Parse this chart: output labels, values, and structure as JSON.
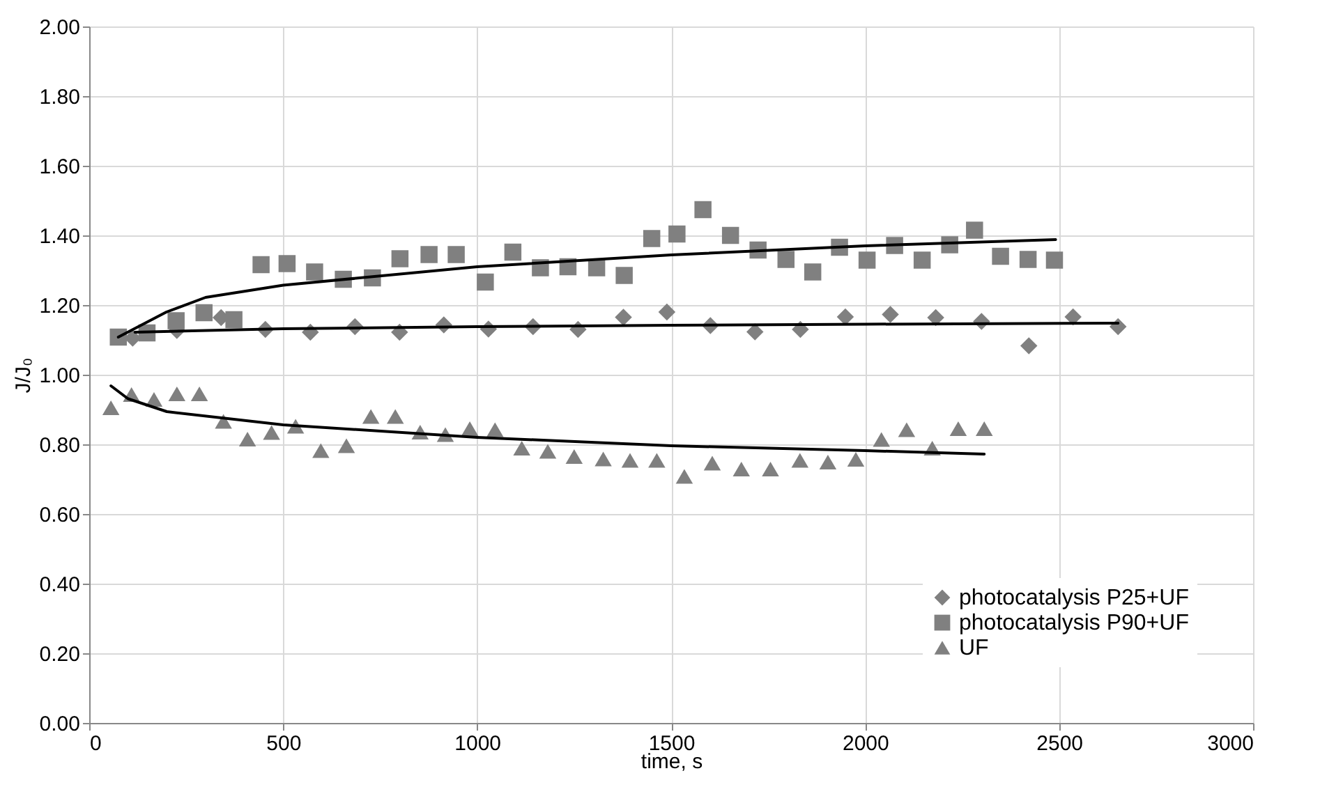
{
  "chart_data": {
    "type": "scatter",
    "xlabel": "time, s",
    "ylabel": "J/J₀",
    "xlim": [
      0,
      3000
    ],
    "xticks": [
      0,
      500,
      1000,
      1500,
      2000,
      2500,
      3000
    ],
    "ylim": [
      0,
      2
    ],
    "yticks": [
      {
        "value": 0,
        "label": "0.00"
      },
      {
        "value": 0.2,
        "label": "0.20"
      },
      {
        "value": 0.4,
        "label": "0.40"
      },
      {
        "value": 0.6,
        "label": "0.60"
      },
      {
        "value": 0.8,
        "label": "0.80"
      },
      {
        "value": 1,
        "label": "1.00"
      },
      {
        "value": 1.2,
        "label": "1.20"
      },
      {
        "value": 1.4,
        "label": "1.40"
      },
      {
        "value": 1.6,
        "label": "1.60"
      },
      {
        "value": 1.8,
        "label": "1.80"
      },
      {
        "value": 2,
        "label": "2.00"
      }
    ],
    "grid": true,
    "legend": "bottom right",
    "series": [
      {
        "name": "photocatalysis P25+UF",
        "color": "#808080",
        "marker": "diamond",
        "x": [
          112,
          226,
          340,
          454,
          570,
          685,
          800,
          914,
          1029,
          1144,
          1260,
          1377,
          1489,
          1601,
          1716,
          1833,
          1949,
          2065,
          2182,
          2300,
          2422,
          2536,
          2652
        ],
        "values": [
          1.105,
          1.127,
          1.164,
          1.13,
          1.122,
          1.138,
          1.122,
          1.143,
          1.131,
          1.138,
          1.13,
          1.165,
          1.18,
          1.141,
          1.123,
          1.13,
          1.166,
          1.173,
          1.164,
          1.153,
          1.083,
          1.166,
          1.138
        ]
      },
      {
        "name": "photocatalysis P90+UF",
        "color": "#808080",
        "marker": "square",
        "x": [
          75,
          149,
          224,
          296,
          373,
          443,
          510,
          581,
          655,
          730,
          801,
          876,
          946,
          1021,
          1092,
          1163,
          1234,
          1308,
          1379,
          1450,
          1515,
          1582,
          1653,
          1724,
          1796,
          1865,
          1934,
          2005,
          2076,
          2147,
          2218,
          2282,
          2349,
          2420,
          2488
        ],
        "values": [
          1.108,
          1.12,
          1.155,
          1.178,
          1.158,
          1.316,
          1.319,
          1.295,
          1.274,
          1.278,
          1.333,
          1.345,
          1.345,
          1.266,
          1.352,
          1.307,
          1.31,
          1.307,
          1.285,
          1.391,
          1.404,
          1.474,
          1.4,
          1.358,
          1.331,
          1.295,
          1.366,
          1.329,
          1.371,
          1.329,
          1.373,
          1.415,
          1.34,
          1.331,
          1.329
        ]
      },
      {
        "name": "UF",
        "color": "#808080",
        "marker": "triangle",
        "x": [
          56,
          109,
          167,
          226,
          284,
          346,
          408,
          470,
          532,
          597,
          663,
          726,
          789,
          853,
          918,
          981,
          1046,
          1115,
          1182,
          1250,
          1325,
          1394,
          1463,
          1534,
          1606,
          1681,
          1756,
          1832,
          1904,
          1976,
          2042,
          2107,
          2173,
          2240,
          2307
        ],
        "values": [
          0.905,
          0.943,
          0.929,
          0.945,
          0.945,
          0.866,
          0.815,
          0.834,
          0.852,
          0.782,
          0.796,
          0.88,
          0.88,
          0.835,
          0.828,
          0.845,
          0.842,
          0.789,
          0.78,
          0.765,
          0.758,
          0.754,
          0.754,
          0.708,
          0.746,
          0.729,
          0.729,
          0.754,
          0.749,
          0.757,
          0.814,
          0.842,
          0.789,
          0.845,
          0.845
        ]
      },
      {
        "type": "line",
        "color": "#000000",
        "x": [
          118,
          500,
          1000,
          1500,
          2000,
          2652
        ],
        "values": [
          1.122,
          1.132,
          1.138,
          1.142,
          1.145,
          1.148
        ]
      },
      {
        "type": "line",
        "color": "#000000",
        "x": [
          75,
          199,
          300,
          500,
          1000,
          1500,
          2000,
          2491
        ],
        "values": [
          1.108,
          1.18,
          1.222,
          1.257,
          1.31,
          1.344,
          1.37,
          1.388
        ]
      },
      {
        "type": "line",
        "color": "#000000",
        "x": [
          56,
          100,
          200,
          500,
          1000,
          1500,
          2000,
          2307
        ],
        "values": [
          0.968,
          0.931,
          0.894,
          0.856,
          0.82,
          0.796,
          0.782,
          0.772
        ]
      }
    ]
  }
}
